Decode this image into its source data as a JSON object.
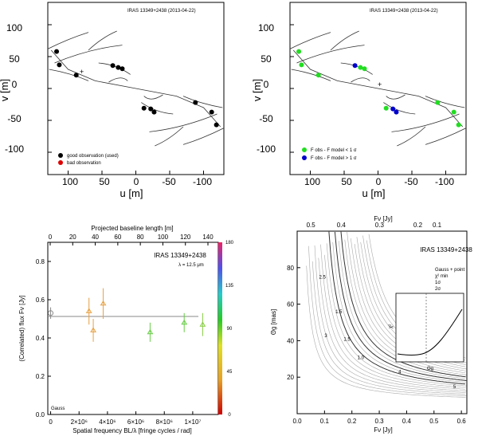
{
  "panels": {
    "uv_left": {
      "title": "IRAS 13349+2438 (2013-04-22)",
      "xlabel": "u [m]",
      "ylabel": "v [m]",
      "xticks": [
        "100",
        "50",
        "0",
        "-50",
        "-100"
      ],
      "yticks": [
        "100",
        "50",
        "0",
        "-50",
        "-100"
      ],
      "legend": [
        {
          "label": "good observation (used)",
          "color": "#000000"
        },
        {
          "label": "bad observation",
          "color": "#dd0000"
        }
      ]
    },
    "uv_right": {
      "title": "IRAS 13349+2438 (2013-04-22)",
      "xlabel": "u [m]",
      "ylabel": "v [m]",
      "xticks": [
        "100",
        "50",
        "0",
        "-50",
        "-100"
      ],
      "yticks": [
        "100",
        "50",
        "0",
        "-50",
        "-100"
      ],
      "legend": [
        {
          "label": "F obs - F model < 1 σ",
          "color": "#22dd22"
        },
        {
          "label": "F obs - F model > 1 σ",
          "color": "#0000cc"
        }
      ]
    },
    "flux": {
      "title": "IRAS 13349+2438",
      "subtitle": "λ = 12.5 μm",
      "top_label": "Projected baseline length [m]",
      "top_ticks": [
        "0",
        "20",
        "40",
        "60",
        "80",
        "100",
        "120",
        "140"
      ],
      "xlabel": "Spatial frequency BL/λ [fringe cycles / rad]",
      "ylabel": "(Correlated) flux Fν [Jy]",
      "xticks": [
        "0",
        "2×10⁶",
        "4×10⁶",
        "6×10⁶",
        "8×10⁶",
        "1×10⁷"
      ],
      "yticks": [
        "0.0",
        "0.2",
        "0.4",
        "0.6",
        "0.8"
      ],
      "corner": "Gauss",
      "colorbar_ticks": [
        "0",
        "45",
        "90",
        "135",
        "180"
      ]
    },
    "contour": {
      "title": "IRAS 13349+2438",
      "xlabel": "Fν [Jy]",
      "ylabel": "Θg [mas]",
      "top_label": "Fν [Jy]",
      "xticks": [
        "0.0",
        "0.1",
        "0.2",
        "0.3",
        "0.4",
        "0.5",
        "0.6"
      ],
      "yticks": [
        "20",
        "40",
        "60",
        "80"
      ],
      "top_ticks": [
        "0.5",
        "0.4",
        "0.3",
        "0.2",
        "0.1"
      ],
      "contour_labels": [
        "2.5",
        "1.5",
        "1.0",
        "3",
        "4",
        "5",
        "1.5"
      ],
      "legend": [
        "Gauss + point",
        "χ² min",
        "1σ",
        "2σ"
      ],
      "inset_xlabel": "Θg",
      "inset_ylabel": "χ²"
    }
  },
  "chart_data": [
    {
      "type": "scatter",
      "title": "IRAS 13349+2438 (2013-04-22)",
      "xlabel": "u [m]",
      "ylabel": "v [m]",
      "xlim": [
        130,
        -130
      ],
      "ylim": [
        -135,
        135
      ],
      "series": [
        {
          "name": "good observation (used)",
          "color": "#000000",
          "points": [
            [
              117,
              58
            ],
            [
              113,
              37
            ],
            [
              88,
              21
            ],
            [
              34,
              36
            ],
            [
              26,
              33
            ],
            [
              20,
              31
            ],
            [
              -12,
              -31
            ],
            [
              -22,
              -32
            ],
            [
              -27,
              -37
            ],
            [
              -88,
              -22
            ],
            [
              -112,
              -37
            ],
            [
              -119,
              -57
            ]
          ]
        },
        {
          "name": "bad observation",
          "color": "#dd0000",
          "points": []
        }
      ]
    },
    {
      "type": "scatter",
      "title": "IRAS 13349+2438 (2013-04-22)",
      "xlabel": "u [m]",
      "ylabel": "v [m]",
      "xlim": [
        130,
        -130
      ],
      "ylim": [
        -135,
        135
      ],
      "series": [
        {
          "name": "F obs - F model < 1 σ",
          "color": "#22dd22",
          "points": [
            [
              117,
              58
            ],
            [
              113,
              37
            ],
            [
              88,
              21
            ],
            [
              26,
              33
            ],
            [
              20,
              31
            ],
            [
              -12,
              -31
            ],
            [
              -88,
              -22
            ],
            [
              -112,
              -37
            ],
            [
              -119,
              -57
            ]
          ]
        },
        {
          "name": "F obs - F model > 1 σ",
          "color": "#0000cc",
          "points": [
            [
              34,
              36
            ],
            [
              -22,
              -32
            ],
            [
              -27,
              -37
            ]
          ]
        }
      ]
    },
    {
      "type": "scatter",
      "title": "IRAS 13349+2438",
      "xlabel": "Spatial frequency BL/λ [fringe cycles / rad]",
      "ylabel": "(Correlated) flux Fν [Jy]",
      "xlim": [
        -200000,
        11800000
      ],
      "ylim": [
        0,
        0.9
      ],
      "model_level": 0.5,
      "points": [
        {
          "x": 0,
          "y": 0.53,
          "err": 0.03,
          "color": "#888888"
        },
        {
          "x": 2700000,
          "y": 0.54,
          "err": 0.07,
          "color": "#e8a040"
        },
        {
          "x": 3000000,
          "y": 0.44,
          "err": 0.06,
          "color": "#e8a040"
        },
        {
          "x": 3700000,
          "y": 0.58,
          "err": 0.08,
          "color": "#e8a040"
        },
        {
          "x": 7000000,
          "y": 0.43,
          "err": 0.05,
          "color": "#66cc44"
        },
        {
          "x": 9400000,
          "y": 0.48,
          "err": 0.05,
          "color": "#66cc44"
        },
        {
          "x": 10700000,
          "y": 0.47,
          "err": 0.06,
          "color": "#88cc44"
        }
      ]
    },
    {
      "type": "contour",
      "title": "IRAS 13349+2438",
      "xlabel": "Fν [Jy]",
      "ylabel": "Θg [mas]",
      "xlim": [
        0.0,
        0.62
      ],
      "ylim": [
        0,
        100
      ]
    }
  ]
}
